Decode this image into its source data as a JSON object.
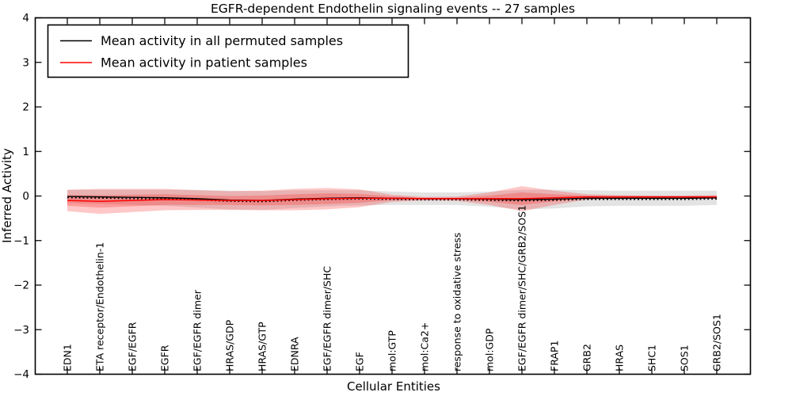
{
  "chart_data": {
    "type": "line",
    "title": "EGFR-dependent Endothelin signaling events -- 27 samples",
    "xlabel": "Cellular Entities",
    "ylabel": "Inferred Activity",
    "ylim": [
      -4,
      4
    ],
    "yticks": [
      4,
      3,
      2,
      1,
      0,
      -1,
      -2,
      -3,
      -4
    ],
    "ytick_labels": [
      "4",
      "3",
      "2",
      "1",
      "0",
      "−1",
      "−2",
      "−3",
      "−4"
    ],
    "grid": false,
    "legend": {
      "position": "upper left",
      "entries": [
        {
          "label": "Mean activity in all permuted samples",
          "color": "#000000"
        },
        {
          "label": "Mean activity in patient samples",
          "color": "#ff0000"
        }
      ]
    },
    "categories": [
      "EDN1",
      "ETA receptor/Endothelin-1",
      "EGF/EGFR",
      "EGFR",
      "EGF/EGFR dimer",
      "HRAS/GDP",
      "HRAS/GTP",
      "EDNRA",
      "EGF/EGFR dimer/SHC",
      "EGF",
      "mol:GTP",
      "mol:Ca2+",
      "response to oxidative stress",
      "mol:GDP",
      "EGF/EGFR dimer/SHC/GRB2/SOS1",
      "FRAP1",
      "GRB2",
      "HRAS",
      "SHC1",
      "SOS1",
      "GRB2/SOS1"
    ],
    "series": [
      {
        "name": "Mean activity in all permuted samples",
        "role": "permuted-mean",
        "color": "#000000",
        "values": [
          -0.01,
          -0.02,
          -0.03,
          -0.04,
          -0.06,
          -0.09,
          -0.1,
          -0.07,
          -0.05,
          -0.04,
          -0.05,
          -0.06,
          -0.06,
          -0.07,
          -0.08,
          -0.07,
          -0.05,
          -0.05,
          -0.05,
          -0.05,
          -0.04
        ]
      },
      {
        "name": "Permuted samples band half-width (std)",
        "role": "permuted-band",
        "color": "rgba(0,0,0,0.11)",
        "values": [
          0.15,
          0.16,
          0.17,
          0.18,
          0.2,
          0.21,
          0.21,
          0.2,
          0.18,
          0.17,
          0.15,
          0.14,
          0.14,
          0.17,
          0.22,
          0.21,
          0.18,
          0.17,
          0.17,
          0.17,
          0.16
        ]
      },
      {
        "name": "Mean activity in patient samples",
        "role": "patient-mean",
        "color": "#ff0000",
        "values": [
          -0.1,
          -0.12,
          -0.1,
          -0.08,
          -0.09,
          -0.1,
          -0.1,
          -0.08,
          -0.06,
          -0.05,
          -0.05,
          -0.06,
          -0.06,
          -0.06,
          -0.06,
          -0.04,
          -0.02,
          -0.02,
          -0.02,
          -0.02,
          -0.02
        ]
      },
      {
        "name": "Patient samples inner band half-width (1 std)",
        "role": "patient-band-inner",
        "color": "rgba(255,0,0,0.22)",
        "values": [
          0.12,
          0.14,
          0.13,
          0.12,
          0.11,
          0.1,
          0.11,
          0.12,
          0.12,
          0.1,
          0.04,
          0.02,
          0.02,
          0.07,
          0.14,
          0.08,
          0.03,
          0.02,
          0.02,
          0.02,
          0.02
        ]
      },
      {
        "name": "Patient samples outer band half-width (2 std)",
        "role": "patient-band-outer",
        "color": "rgba(255,0,0,0.22)",
        "values": [
          0.24,
          0.28,
          0.26,
          0.24,
          0.22,
          0.21,
          0.22,
          0.24,
          0.24,
          0.2,
          0.08,
          0.04,
          0.05,
          0.14,
          0.28,
          0.16,
          0.06,
          0.04,
          0.03,
          0.03,
          0.04
        ]
      }
    ],
    "colors": {
      "permuted_line": "#000000",
      "patient_line": "#ff0000",
      "permuted_band": "rgba(0,0,0,0.11)",
      "patient_band": "rgba(255,0,0,0.22)",
      "background": "#ffffff"
    }
  }
}
